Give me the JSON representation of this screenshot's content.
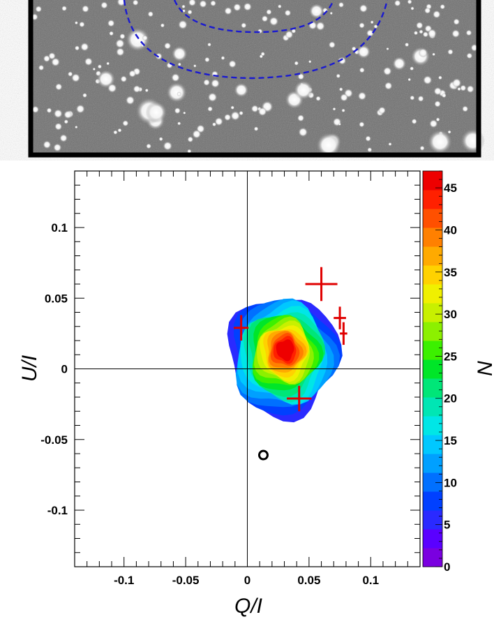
{
  "image_panel": {
    "description_icon": "star-field-image",
    "aperture_color": "#1a1ad0"
  },
  "chart_data": {
    "type": "heatmap",
    "title": "",
    "xlabel": "Q/I",
    "ylabel": "U/I",
    "xlim": [
      -0.14,
      0.14
    ],
    "ylim": [
      -0.14,
      0.14
    ],
    "x_ticks": [
      -0.1,
      -0.05,
      0,
      0.05,
      0.1
    ],
    "x_tick_labels": [
      "-0.1",
      "-0.05",
      "0",
      "0.05",
      "0.1"
    ],
    "y_ticks": [
      -0.1,
      -0.05,
      0,
      0.05,
      0.1
    ],
    "y_tick_labels": [
      "-0.1",
      "-0.05",
      "0",
      "0.05",
      "0.1"
    ],
    "colorbar": {
      "label": "N",
      "min": 0,
      "max": 47,
      "ticks": [
        0,
        5,
        10,
        15,
        20,
        25,
        30,
        35,
        40,
        45
      ],
      "tick_labels": [
        "0",
        "5",
        "10",
        "15",
        "20",
        "25",
        "30",
        "35",
        "40",
        "45"
      ],
      "colors": [
        "#7a00e0",
        "#5a00ff",
        "#2a2aff",
        "#0040ff",
        "#0070ff",
        "#00a0ff",
        "#00c8ff",
        "#00e6e6",
        "#00e6b4",
        "#00e678",
        "#00e628",
        "#3cf000",
        "#8cf000",
        "#c8f000",
        "#f0f000",
        "#ffd200",
        "#ffaa00",
        "#ff8000",
        "#ff5000",
        "#ff2000",
        "#ee0000"
      ]
    },
    "density_center": [
      0.032,
      0.015
    ],
    "crosses": [
      {
        "x": 0.06,
        "y": 0.06,
        "xerr": 0.013,
        "yerr": 0.012
      },
      {
        "x": -0.005,
        "y": 0.029,
        "xerr": 0.006,
        "yerr": 0.009
      },
      {
        "x": 0.075,
        "y": 0.036,
        "xerr": 0.005,
        "yerr": 0.008
      },
      {
        "x": 0.078,
        "y": 0.025,
        "xerr": 0.003,
        "yerr": 0.008
      },
      {
        "x": 0.042,
        "y": -0.021,
        "xerr": 0.01,
        "yerr": 0.009
      }
    ],
    "circle_marker": {
      "x": 0.013,
      "y": -0.061
    },
    "cross_color": "#e00000",
    "grid": false
  }
}
